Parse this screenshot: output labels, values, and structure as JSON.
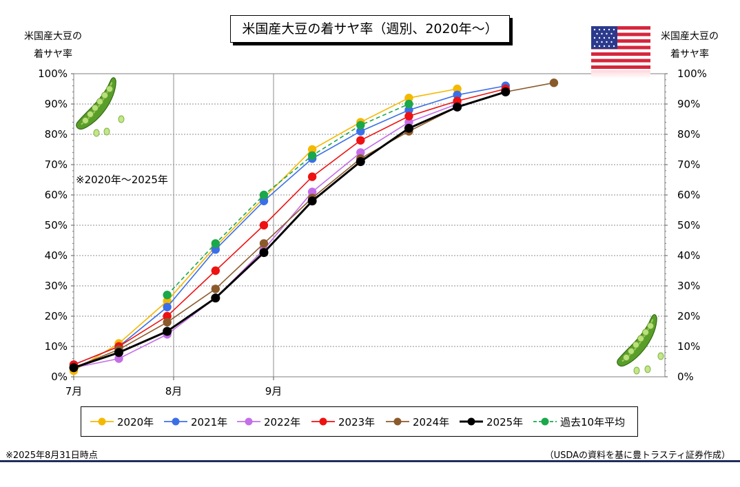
{
  "title": "米国産大豆の着サヤ率（週別、2020年～）",
  "left_axis_title": [
    "米国産大豆の",
    "着サヤ率"
  ],
  "right_axis_title": [
    "米国産大豆の",
    "着サヤ率"
  ],
  "note": "※2020年～2025年",
  "footnote": "※2025年8月31日時点",
  "source": "（USDAの資料を基に豊トラスティ証券作成）",
  "icons": {
    "flag": "us-flag-icon",
    "pea_pod": "pea-pod-icon"
  },
  "chart_data": {
    "type": "line",
    "x_labels": [
      "7月",
      "8月",
      "9月"
    ],
    "y_ticks": [
      "0%",
      "10%",
      "20%",
      "30%",
      "40%",
      "50%",
      "60%",
      "70%",
      "80%",
      "90%",
      "100%"
    ],
    "ylim": [
      0,
      100
    ],
    "grid": true,
    "legend_position": "bottom",
    "series": [
      {
        "name": "2020年",
        "color": "#f5b800",
        "dashed": false,
        "points": [
          [
            "07-01",
            2
          ],
          [
            "07-15",
            11
          ],
          [
            "07-30",
            25
          ],
          [
            "08-14",
            43
          ],
          [
            "08-29",
            59
          ],
          [
            "09-13",
            75
          ],
          [
            "09-28",
            84
          ],
          [
            "10-13",
            92
          ],
          [
            "10-28",
            95
          ]
        ]
      },
      {
        "name": "2021年",
        "color": "#3b6fe8",
        "dashed": false,
        "points": [
          [
            "07-01",
            4
          ],
          [
            "07-15",
            10
          ],
          [
            "07-30",
            23
          ],
          [
            "08-14",
            42
          ],
          [
            "08-29",
            58
          ],
          [
            "09-13",
            72
          ],
          [
            "09-28",
            81
          ],
          [
            "10-13",
            88
          ],
          [
            "10-28",
            93
          ],
          [
            "11-12",
            96
          ]
        ]
      },
      {
        "name": "2022年",
        "color": "#c46ee8",
        "dashed": false,
        "points": [
          [
            "07-01",
            3
          ],
          [
            "07-15",
            6
          ],
          [
            "07-30",
            14
          ],
          [
            "08-14",
            26
          ],
          [
            "08-29",
            42
          ],
          [
            "09-13",
            61
          ],
          [
            "09-28",
            74
          ],
          [
            "10-13",
            84
          ],
          [
            "10-28",
            90
          ]
        ]
      },
      {
        "name": "2023年",
        "color": "#ee1111",
        "dashed": false,
        "points": [
          [
            "07-01",
            4
          ],
          [
            "07-15",
            10
          ],
          [
            "07-30",
            20
          ],
          [
            "08-14",
            35
          ],
          [
            "08-29",
            50
          ],
          [
            "09-13",
            66
          ],
          [
            "09-28",
            78
          ],
          [
            "10-13",
            86
          ],
          [
            "10-28",
            91
          ],
          [
            "11-12",
            95
          ]
        ]
      },
      {
        "name": "2024年",
        "color": "#8b5a2b",
        "dashed": false,
        "points": [
          [
            "07-01",
            3
          ],
          [
            "07-15",
            9
          ],
          [
            "07-30",
            18
          ],
          [
            "08-14",
            29
          ],
          [
            "08-29",
            44
          ],
          [
            "09-13",
            59
          ],
          [
            "09-28",
            72
          ],
          [
            "10-13",
            81
          ],
          [
            "10-28",
            89
          ],
          [
            "11-12",
            94
          ],
          [
            "11-27",
            97
          ]
        ]
      },
      {
        "name": "2025年",
        "color": "#000000",
        "dashed": false,
        "points": [
          [
            "07-01",
            3
          ],
          [
            "07-15",
            8
          ],
          [
            "07-30",
            15
          ],
          [
            "08-14",
            26
          ],
          [
            "08-29",
            41
          ],
          [
            "09-13",
            58
          ],
          [
            "09-28",
            71
          ],
          [
            "10-13",
            82
          ],
          [
            "10-28",
            89
          ],
          [
            "11-12",
            94
          ]
        ]
      },
      {
        "name": "過去10年平均",
        "color": "#1aa84a",
        "dashed": true,
        "points": [
          [
            "07-30",
            27
          ],
          [
            "08-14",
            44
          ],
          [
            "08-29",
            60
          ],
          [
            "09-13",
            73
          ],
          [
            "09-28",
            83
          ],
          [
            "10-13",
            90
          ]
        ]
      }
    ]
  }
}
